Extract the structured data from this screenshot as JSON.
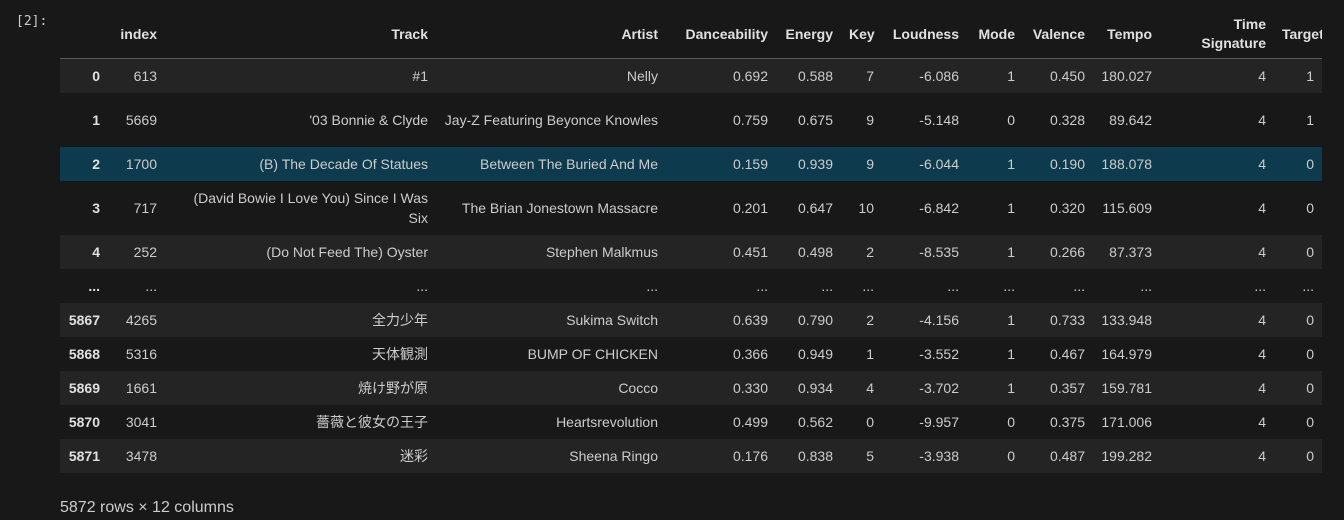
{
  "cell": {
    "prompt": "[2]:",
    "footer": "5872 rows × 12 columns"
  },
  "table": {
    "headers": [
      "",
      "index",
      "Track",
      "Artist",
      "Danceability",
      "Energy",
      "Key",
      "Loudness",
      "Mode",
      "Valence",
      "Tempo",
      "Time Signature",
      "Target"
    ],
    "rows": [
      [
        "0",
        "613",
        "#1",
        "Nelly",
        "0.692",
        "0.588",
        "7",
        "-6.086",
        "1",
        "0.450",
        "180.027",
        "4",
        "1"
      ],
      [
        "1",
        "5669",
        "'03 Bonnie & Clyde",
        "Jay-Z Featuring Beyonce Knowles",
        "0.759",
        "0.675",
        "9",
        "-5.148",
        "0",
        "0.328",
        "89.642",
        "4",
        "1"
      ],
      [
        "2",
        "1700",
        "(B) The Decade Of Statues",
        "Between The Buried And Me",
        "0.159",
        "0.939",
        "9",
        "-6.044",
        "1",
        "0.190",
        "188.078",
        "4",
        "0"
      ],
      [
        "3",
        "717",
        "(David Bowie I Love You) Since I Was Six",
        "The Brian Jonestown Massacre",
        "0.201",
        "0.647",
        "10",
        "-6.842",
        "1",
        "0.320",
        "115.609",
        "4",
        "0"
      ],
      [
        "4",
        "252",
        "(Do Not Feed The) Oyster",
        "Stephen Malkmus",
        "0.451",
        "0.498",
        "2",
        "-8.535",
        "1",
        "0.266",
        "87.373",
        "4",
        "0"
      ],
      [
        "...",
        "...",
        "...",
        "...",
        "...",
        "...",
        "...",
        "...",
        "...",
        "...",
        "...",
        "...",
        "..."
      ],
      [
        "5867",
        "4265",
        "全力少年",
        "Sukima Switch",
        "0.639",
        "0.790",
        "2",
        "-4.156",
        "1",
        "0.733",
        "133.948",
        "4",
        "0"
      ],
      [
        "5868",
        "5316",
        "天体観測",
        "BUMP OF CHICKEN",
        "0.366",
        "0.949",
        "1",
        "-3.552",
        "1",
        "0.467",
        "164.979",
        "4",
        "0"
      ],
      [
        "5869",
        "1661",
        "焼け野が原",
        "Cocco",
        "0.330",
        "0.934",
        "4",
        "-3.702",
        "1",
        "0.357",
        "159.781",
        "4",
        "0"
      ],
      [
        "5870",
        "3041",
        "薔薇と彼女の王子",
        "Heartsrevolution",
        "0.499",
        "0.562",
        "0",
        "-9.957",
        "0",
        "0.375",
        "171.006",
        "4",
        "0"
      ],
      [
        "5871",
        "3478",
        "迷彩",
        "Sheena Ringo",
        "0.176",
        "0.838",
        "5",
        "-3.938",
        "0",
        "0.487",
        "199.282",
        "4",
        "0"
      ]
    ]
  },
  "colors": {
    "background": "#181818",
    "row_alt": "#242424",
    "row_selected": "#0e3a4d",
    "text": "#cccccc"
  }
}
